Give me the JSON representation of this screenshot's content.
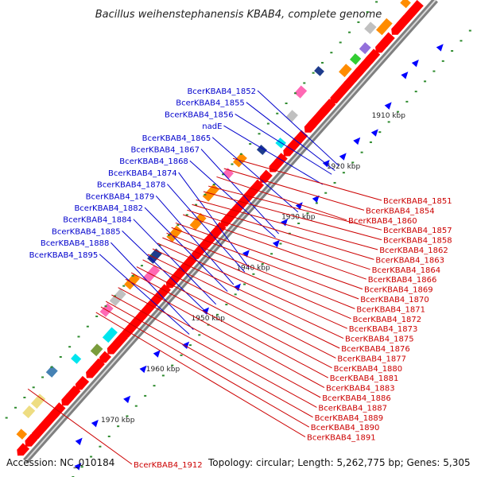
{
  "title": "Bacillus weihenstephanensis KBAB4, complete genome",
  "footer": {
    "accession": "Accession: NC_010184",
    "summary": "Topology: circular; Length: 5,262,775 bp; Genes: 5,305"
  },
  "colors": {
    "backbone": "#808080",
    "positive_strand": "#ff0000",
    "negative_strand": "#0000ff",
    "tick": "#2e8b2e",
    "left_label": "#0000cc",
    "right_label": "#cc0000"
  },
  "kbp_ticks": [
    {
      "label": "1910 kbp",
      "t": 0.175
    },
    {
      "label": "1920 kbp",
      "t": 0.285
    },
    {
      "label": "1930 kbp",
      "t": 0.395
    },
    {
      "label": "1940 kbp",
      "t": 0.505
    },
    {
      "label": "1950 kbp",
      "t": 0.615
    },
    {
      "label": "1960 kbp",
      "t": 0.725
    },
    {
      "label": "1970 kbp",
      "t": 0.835
    }
  ],
  "left_labels": [
    {
      "text": "BcerKBAB4_1852",
      "t": 0.305
    },
    {
      "text": "BcerKBAB4_1855",
      "t": 0.315
    },
    {
      "text": "BcerKBAB4_1856",
      "t": 0.323
    },
    {
      "text": "nadE",
      "t": 0.345
    },
    {
      "text": "BcerKBAB4_1865",
      "t": 0.405
    },
    {
      "text": "BcerKBAB4_1867",
      "t": 0.452
    },
    {
      "text": "BcerKBAB4_1868",
      "t": 0.46
    },
    {
      "text": "BcerKBAB4_1874",
      "t": 0.525
    },
    {
      "text": "BcerKBAB4_1878",
      "t": 0.535
    },
    {
      "text": "BcerKBAB4_1879",
      "t": 0.562
    },
    {
      "text": "BcerKBAB4_1882",
      "t": 0.577
    },
    {
      "text": "BcerKBAB4_1884",
      "t": 0.605
    },
    {
      "text": "BcerKBAB4_1885",
      "t": 0.625
    },
    {
      "text": "BcerKBAB4_1888",
      "t": 0.66
    },
    {
      "text": "BcerKBAB4_1895",
      "t": 0.67
    }
  ],
  "right_labels": [
    {
      "text": "BcerKBAB4_1851",
      "t": 0.41
    },
    {
      "text": "BcerKBAB4_1854",
      "t": 0.432
    },
    {
      "text": "BcerKBAB4_1860",
      "t": 0.45
    },
    {
      "text": "BcerKBAB4_1857",
      "t": 0.47
    },
    {
      "text": "BcerKBAB4_1858",
      "t": 0.482
    },
    {
      "text": "BcerKBAB4_1862",
      "t": 0.5
    },
    {
      "text": "BcerKBAB4_1863",
      "t": 0.51
    },
    {
      "text": "BcerKBAB4_1864",
      "t": 0.522
    },
    {
      "text": "BcerKBAB4_1866",
      "t": 0.532
    },
    {
      "text": "BcerKBAB4_1869",
      "t": 0.55
    },
    {
      "text": "BcerKBAB4_1870",
      "t": 0.56
    },
    {
      "text": "BcerKBAB4_1871",
      "t": 0.572
    },
    {
      "text": "BcerKBAB4_1872",
      "t": 0.582
    },
    {
      "text": "BcerKBAB4_1873",
      "t": 0.594
    },
    {
      "text": "BcerKBAB4_1875",
      "t": 0.606
    },
    {
      "text": "BcerKBAB4_1876",
      "t": 0.618
    },
    {
      "text": "BcerKBAB4_1877",
      "t": 0.63
    },
    {
      "text": "BcerKBAB4_1880",
      "t": 0.645
    },
    {
      "text": "BcerKBAB4_1881",
      "t": 0.658
    },
    {
      "text": "BcerKBAB4_1883",
      "t": 0.672
    },
    {
      "text": "BcerKBAB4_1886",
      "t": 0.69
    },
    {
      "text": "BcerKBAB4_1887",
      "t": 0.706
    },
    {
      "text": "BcerKBAB4_1889",
      "t": 0.72
    },
    {
      "text": "BcerKBAB4_1890",
      "t": 0.732
    },
    {
      "text": "BcerKBAB4_1891",
      "t": 0.744
    },
    {
      "text": "BcerKBAB4_1912",
      "t": 0.91
    }
  ]
}
